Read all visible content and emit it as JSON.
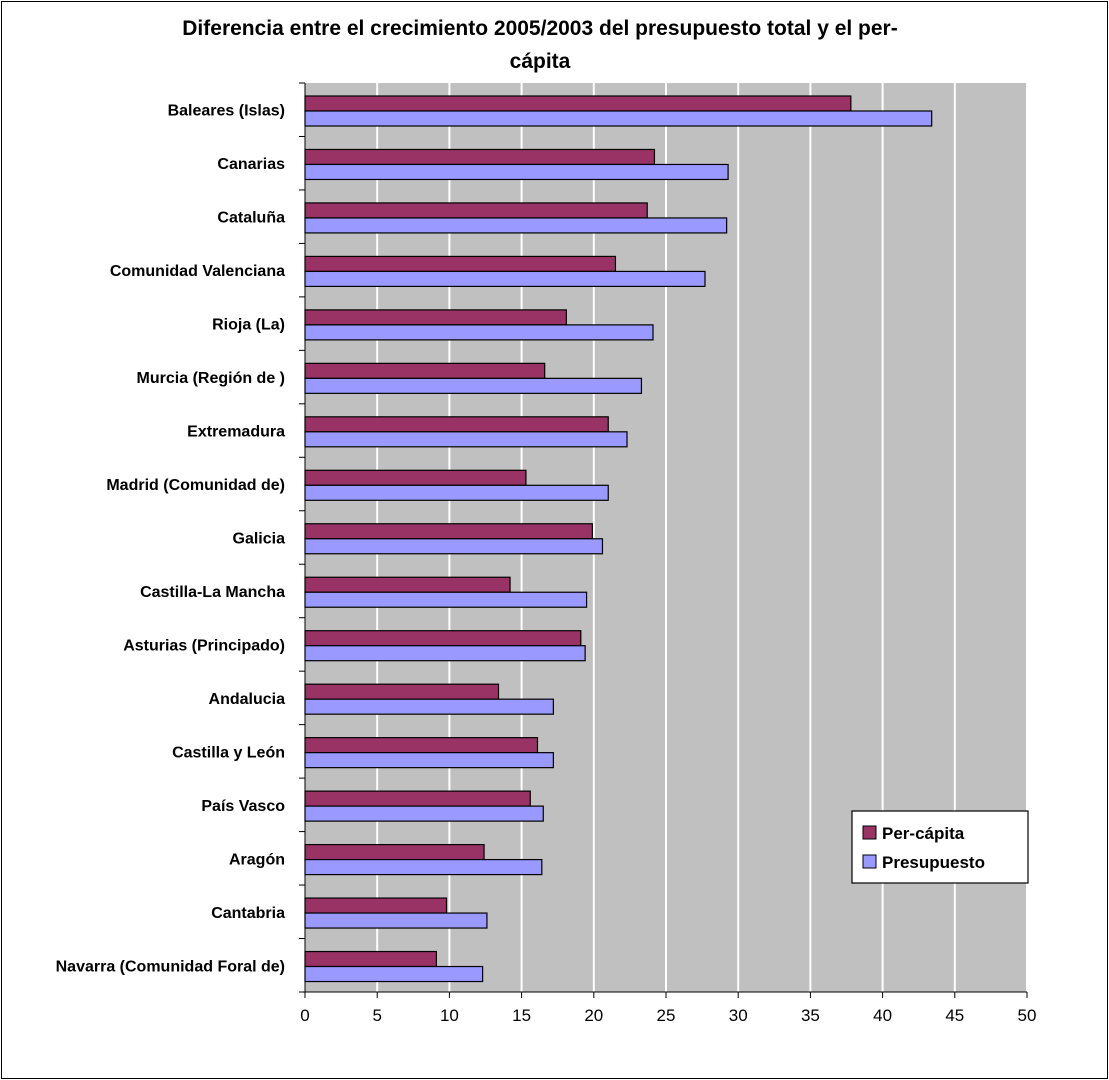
{
  "chart_data": {
    "type": "bar",
    "orientation": "horizontal",
    "title": "Diferencia entre el crecimiento 2005/2003 del presupuesto total y el per-cápita",
    "title_lines": [
      "Diferencia entre el crecimiento 2005/2003 del presupuesto total y el per-",
      "cápita"
    ],
    "categories": [
      "Baleares (Islas)",
      "Canarias",
      "Cataluña",
      "Comunidad Valenciana",
      "Rioja (La)",
      "Murcia (Región de )",
      "Extremadura",
      "Madrid (Comunidad de)",
      "Galicia",
      "Castilla-La Mancha",
      "Asturias (Principado)",
      "Andalucia",
      "Castilla y León",
      "País Vasco",
      "Aragón",
      "Cantabria",
      "Navarra (Comunidad Foral de)"
    ],
    "series": [
      {
        "name": "Per-cápita",
        "color": "#993366",
        "values": [
          37.8,
          24.2,
          23.7,
          21.5,
          18.1,
          16.6,
          21.0,
          15.3,
          19.9,
          14.2,
          19.1,
          13.4,
          16.1,
          15.6,
          12.4,
          9.8,
          9.1
        ]
      },
      {
        "name": "Presupuesto",
        "color": "#9999FF",
        "values": [
          43.4,
          29.3,
          29.2,
          27.7,
          24.1,
          23.3,
          22.3,
          21.0,
          20.6,
          19.5,
          19.4,
          17.2,
          17.2,
          16.5,
          16.4,
          12.6,
          12.3
        ]
      }
    ],
    "xlim": [
      0,
      50
    ],
    "xticks": [
      "0",
      "5",
      "10",
      "15",
      "20",
      "25",
      "30",
      "35",
      "40",
      "45",
      "50"
    ],
    "xlabel": "",
    "ylabel": "",
    "grid": "vertical major gridlines",
    "plot_background": "#C0C0C0",
    "legend_position": "bottom-right"
  }
}
